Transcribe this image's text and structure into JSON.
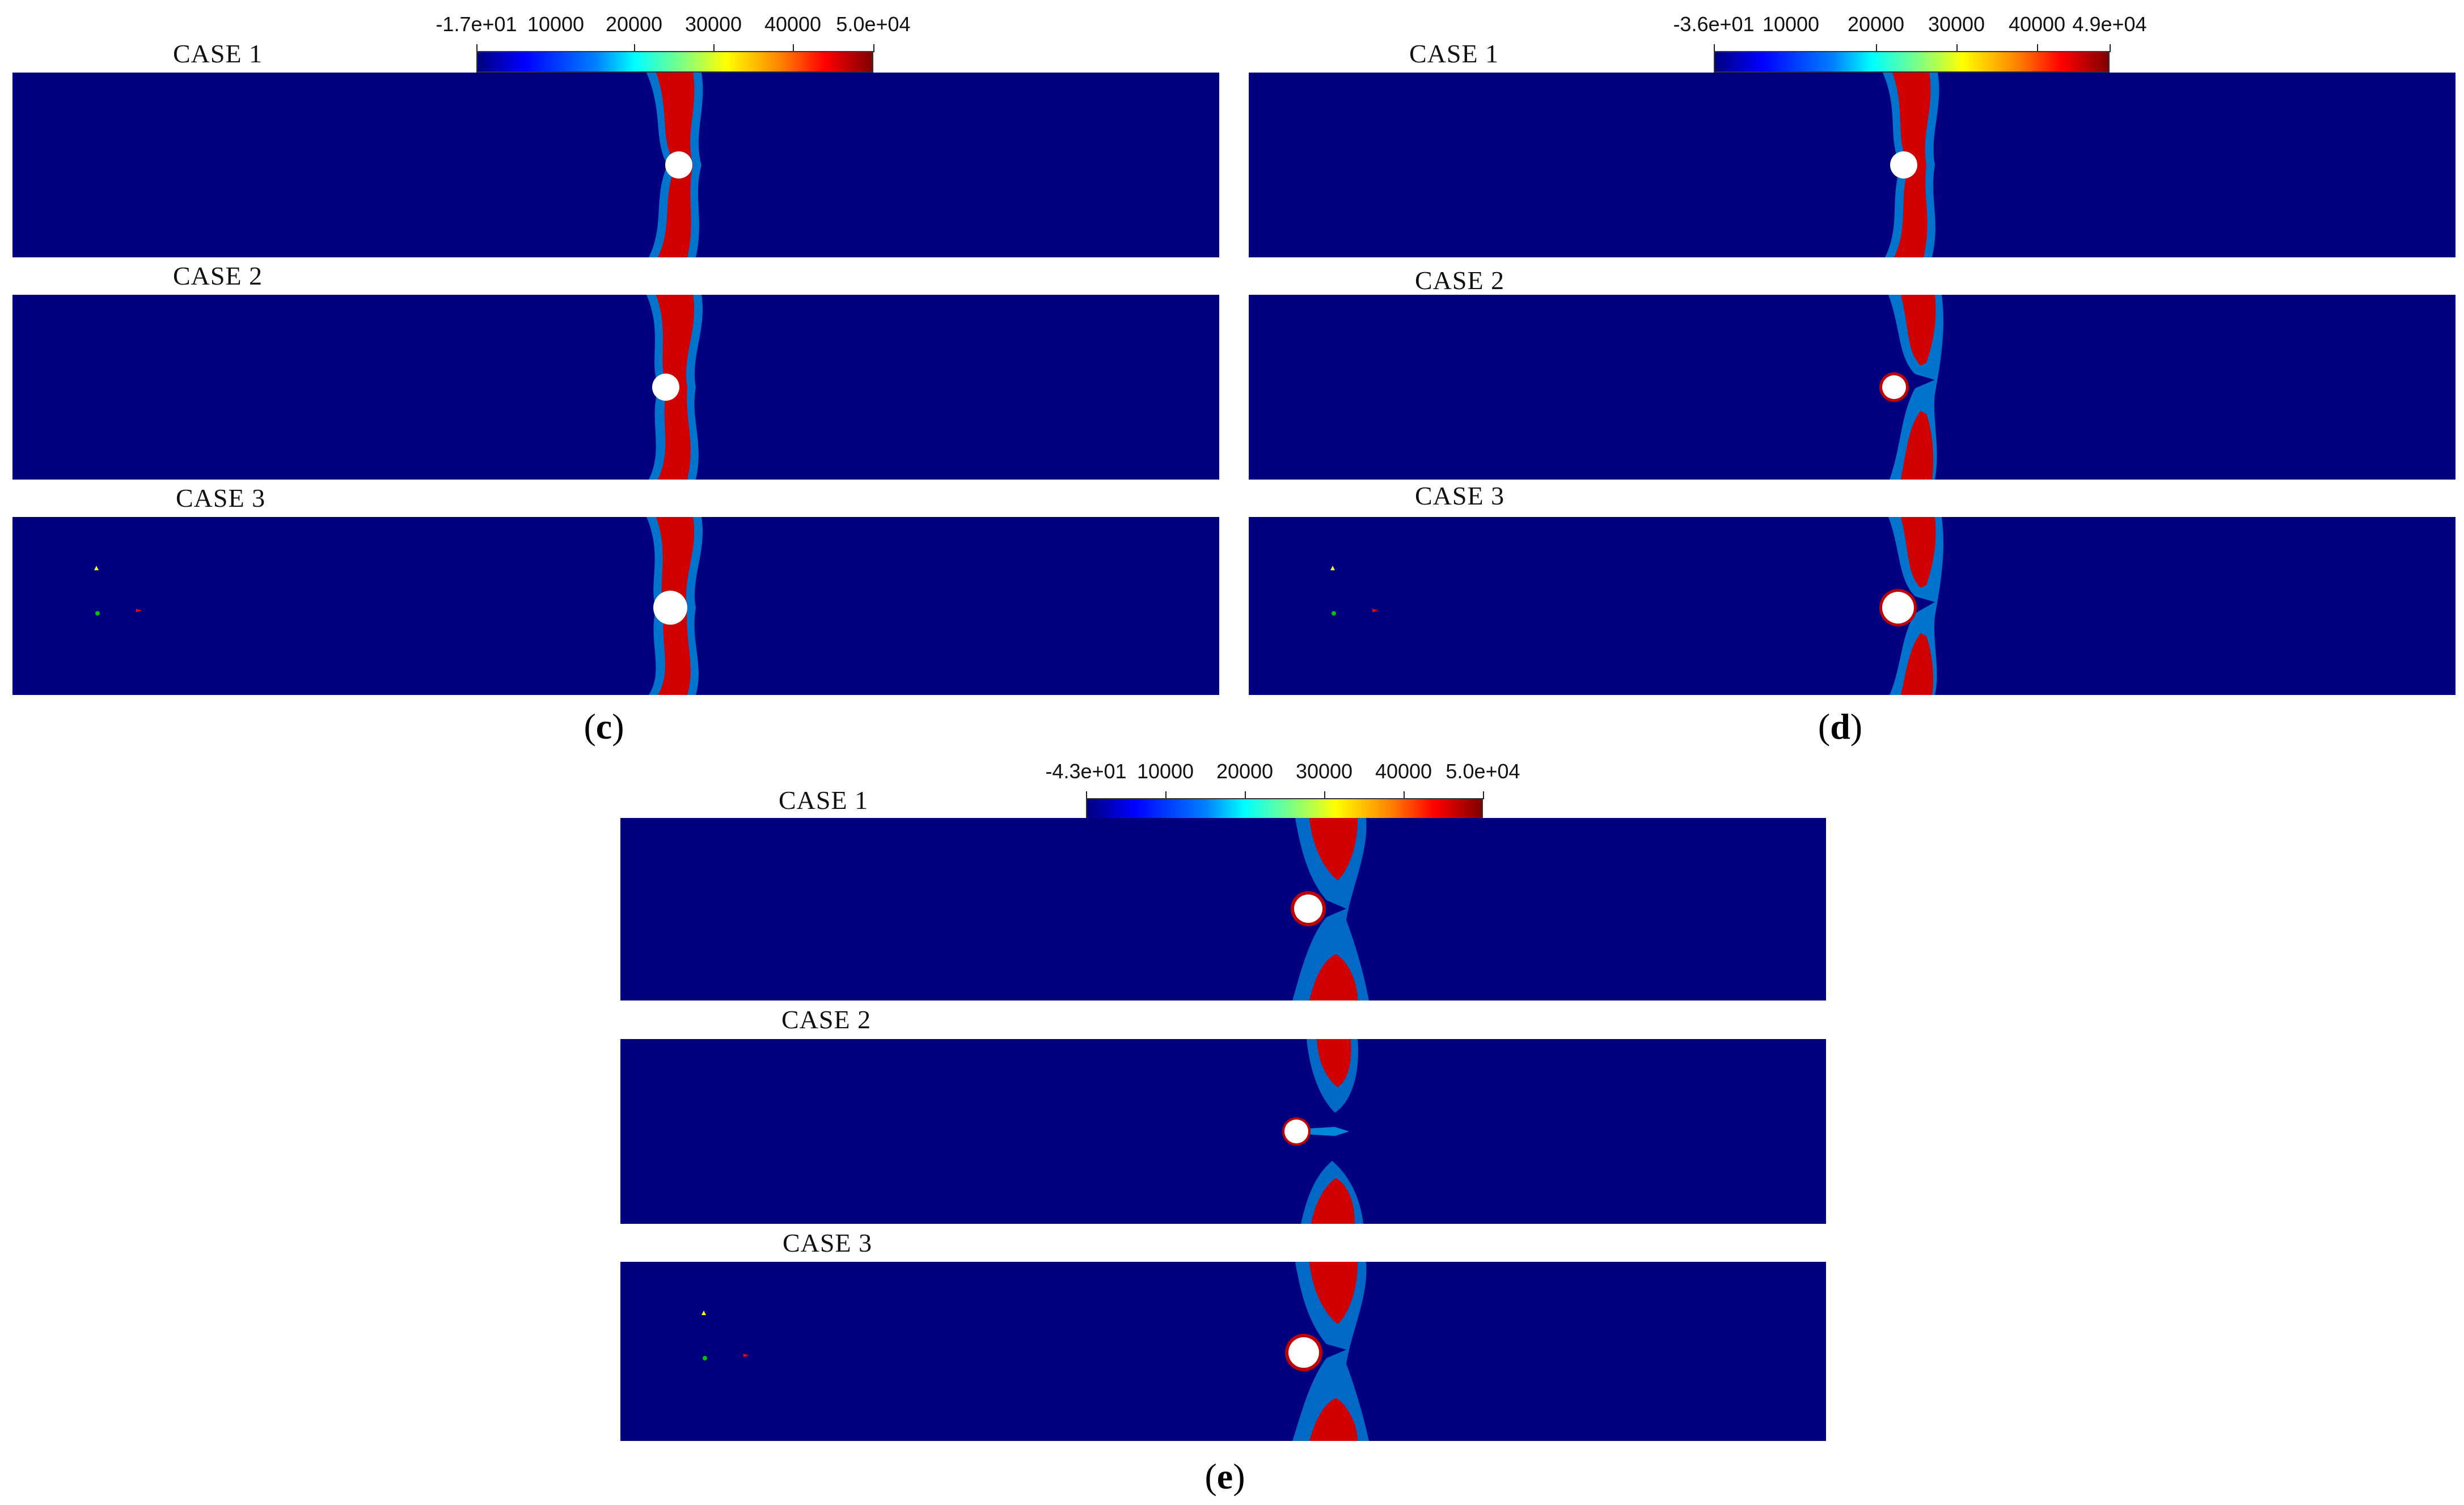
{
  "colors": {
    "background_field": "#00007f",
    "band_red": "#c00000",
    "band_dark": "#800000",
    "cylinder": "#ffffff"
  },
  "panels": [
    {
      "id": "c",
      "label": "c",
      "colorbar": {
        "min_label": "-1.7e+01",
        "ticks": [
          "10000",
          "20000",
          "30000",
          "40000"
        ],
        "max_label": "5.0e+04"
      },
      "cases": [
        {
          "title": "CASE 1"
        },
        {
          "title": "CASE 2"
        },
        {
          "title": "CASE 3"
        }
      ]
    },
    {
      "id": "d",
      "label": "d",
      "colorbar": {
        "min_label": "-3.6e+01",
        "ticks": [
          "10000",
          "20000",
          "30000",
          "40000"
        ],
        "max_label": "4.9e+04"
      },
      "cases": [
        {
          "title": "CASE 1"
        },
        {
          "title": "CASE 2"
        },
        {
          "title": "CASE 3"
        }
      ]
    },
    {
      "id": "e",
      "label": "e",
      "colorbar": {
        "min_label": "-4.3e+01",
        "ticks": [
          "10000",
          "20000",
          "30000",
          "40000"
        ],
        "max_label": "5.0e+04"
      },
      "cases": [
        {
          "title": "CASE 1"
        },
        {
          "title": "CASE 2"
        },
        {
          "title": "CASE 3"
        }
      ]
    }
  ]
}
